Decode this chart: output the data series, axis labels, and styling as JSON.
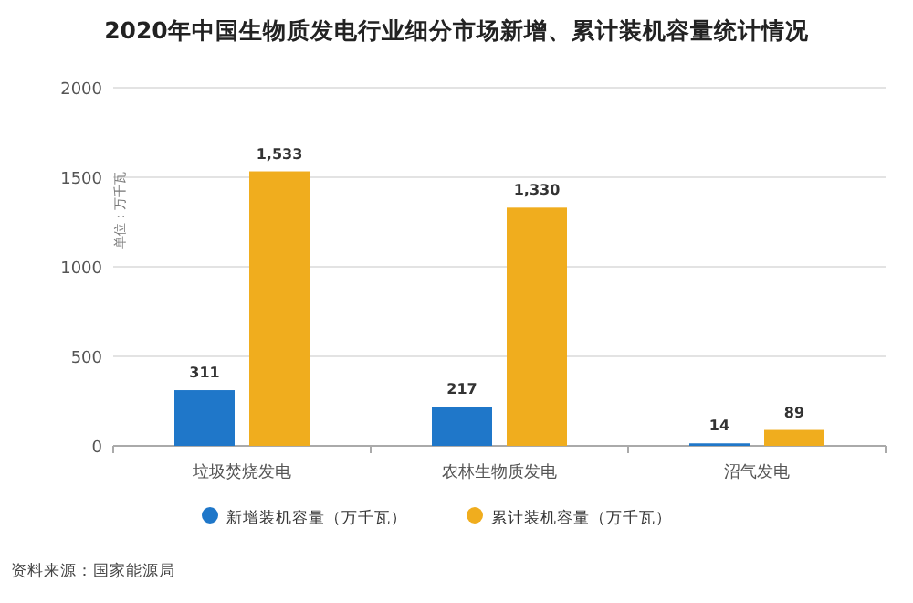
{
  "chart_data": {
    "type": "bar",
    "title": "2020年中国生物质发电行业细分市场新增、累计装机容量统计情况",
    "ylabel": "单位：万千瓦",
    "annotations": [
      "资料来源：国家能源局"
    ],
    "categories": [
      "垃圾焚烧发电",
      "农林生物质发电",
      "沼气发电"
    ],
    "series": [
      {
        "name": "新增装机容量（万千瓦）",
        "color": "#1f77c9",
        "values": [
          311,
          217,
          14
        ],
        "value_labels": [
          "311",
          "217",
          "14"
        ]
      },
      {
        "name": "累计装机容量（万千瓦）",
        "color": "#f0ad1e",
        "values": [
          1533,
          1330,
          89
        ],
        "value_labels": [
          "1,533",
          "1,330",
          "89"
        ]
      }
    ],
    "ylim": [
      0,
      2000
    ],
    "yticks": [
      0,
      500,
      1000,
      1500,
      2000
    ],
    "grid": "y",
    "legend": "bottom"
  }
}
